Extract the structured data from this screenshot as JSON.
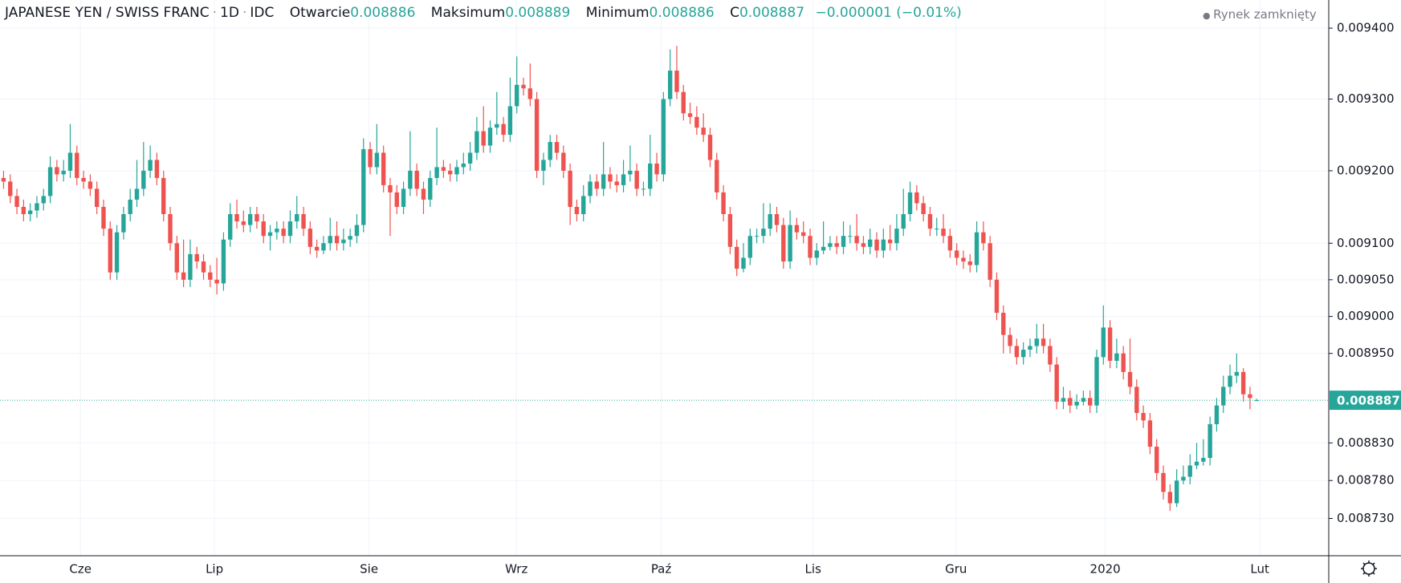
{
  "chart_data": {
    "type": "candlestick",
    "header": {
      "symbol": "JAPANESE YEN / SWISS FRANC",
      "interval": "1D",
      "source": "IDC",
      "open_label": "Otwarcie",
      "open": 0.008886,
      "high_label": "Maksimum",
      "high": 0.008889,
      "low_label": "Minimum",
      "low": 0.008886,
      "close_label": "C",
      "close": 0.008887,
      "change": "−0.000001 (−0.01%)",
      "status": "Rynek zamknięty"
    },
    "log": true,
    "grid": true,
    "up_color": "#26a69a",
    "down_color": "#ef5350",
    "ylim": [
      0.008681,
      0.00944
    ],
    "yticks": [
      {
        "value": 0.0094,
        "label": "0.009400"
      },
      {
        "value": 0.0093,
        "label": "0.009300"
      },
      {
        "value": 0.0092,
        "label": "0.009200"
      },
      {
        "value": 0.0091,
        "label": "0.009100"
      },
      {
        "value": 0.00905,
        "label": "0.009050"
      },
      {
        "value": 0.009,
        "label": "0.009000"
      },
      {
        "value": 0.00895,
        "label": "0.008950"
      },
      {
        "value": 0.00883,
        "label": "0.008830"
      },
      {
        "value": 0.00878,
        "label": "0.008780"
      },
      {
        "value": 0.00873,
        "label": "0.008730"
      }
    ],
    "xlabels": [
      "Cze",
      "Lip",
      "Sie",
      "Wrz",
      "Paź",
      "Lis",
      "Gru",
      "2020",
      "Lut"
    ],
    "candles": [
      [
        0.00919,
        0.0092,
        0.009175,
        0.009185
      ],
      [
        0.009185,
        0.009195,
        0.009155,
        0.009165
      ],
      [
        0.009165,
        0.009175,
        0.00914,
        0.00915
      ],
      [
        0.00915,
        0.00916,
        0.00913,
        0.00914
      ],
      [
        0.00914,
        0.009155,
        0.00913,
        0.009145
      ],
      [
        0.009145,
        0.009165,
        0.009135,
        0.009155
      ],
      [
        0.009155,
        0.009175,
        0.009145,
        0.009165
      ],
      [
        0.009165,
        0.00922,
        0.009155,
        0.009205
      ],
      [
        0.009205,
        0.009215,
        0.009185,
        0.009195
      ],
      [
        0.009195,
        0.009215,
        0.009185,
        0.0092
      ],
      [
        0.0092,
        0.009265,
        0.00919,
        0.009225
      ],
      [
        0.009225,
        0.009235,
        0.00918,
        0.00919
      ],
      [
        0.00919,
        0.0092,
        0.009175,
        0.009185
      ],
      [
        0.009185,
        0.009195,
        0.009165,
        0.009175
      ],
      [
        0.009175,
        0.009185,
        0.00914,
        0.00915
      ],
      [
        0.00915,
        0.00916,
        0.00911,
        0.00912
      ],
      [
        0.00912,
        0.00913,
        0.00905,
        0.00906
      ],
      [
        0.00906,
        0.009125,
        0.00905,
        0.009115
      ],
      [
        0.009115,
        0.00915,
        0.009105,
        0.00914
      ],
      [
        0.00914,
        0.009175,
        0.00913,
        0.00916
      ],
      [
        0.00916,
        0.009215,
        0.00915,
        0.009175
      ],
      [
        0.009175,
        0.00924,
        0.009165,
        0.0092
      ],
      [
        0.0092,
        0.009235,
        0.00919,
        0.009215
      ],
      [
        0.009215,
        0.009225,
        0.00918,
        0.00919
      ],
      [
        0.00919,
        0.0092,
        0.00913,
        0.00914
      ],
      [
        0.00914,
        0.00915,
        0.00909,
        0.0091
      ],
      [
        0.0091,
        0.00911,
        0.00905,
        0.00906
      ],
      [
        0.00906,
        0.009105,
        0.00904,
        0.00905
      ],
      [
        0.00905,
        0.009105,
        0.00904,
        0.009085
      ],
      [
        0.009085,
        0.009095,
        0.009065,
        0.009075
      ],
      [
        0.009075,
        0.009085,
        0.00905,
        0.00906
      ],
      [
        0.00906,
        0.00907,
        0.00904,
        0.00905
      ],
      [
        0.00905,
        0.00908,
        0.00903,
        0.009045
      ],
      [
        0.009045,
        0.009115,
        0.009035,
        0.009105
      ],
      [
        0.009105,
        0.009155,
        0.009095,
        0.00914
      ],
      [
        0.00914,
        0.00916,
        0.00912,
        0.00913
      ],
      [
        0.00913,
        0.009145,
        0.009115,
        0.009125
      ],
      [
        0.009125,
        0.00915,
        0.009115,
        0.00914
      ],
      [
        0.00914,
        0.00915,
        0.00912,
        0.00913
      ],
      [
        0.00913,
        0.00914,
        0.0091,
        0.00911
      ],
      [
        0.00911,
        0.009125,
        0.00909,
        0.009115
      ],
      [
        0.009115,
        0.00913,
        0.009105,
        0.00912
      ],
      [
        0.00912,
        0.00913,
        0.0091,
        0.00911
      ],
      [
        0.00911,
        0.009145,
        0.0091,
        0.00913
      ],
      [
        0.00913,
        0.009165,
        0.00912,
        0.00914
      ],
      [
        0.00914,
        0.00915,
        0.00911,
        0.00912
      ],
      [
        0.00912,
        0.00913,
        0.009085,
        0.009095
      ],
      [
        0.009095,
        0.009105,
        0.00908,
        0.00909
      ],
      [
        0.00909,
        0.00911,
        0.009085,
        0.0091
      ],
      [
        0.0091,
        0.009135,
        0.00909,
        0.00911
      ],
      [
        0.00911,
        0.00913,
        0.00909,
        0.0091
      ],
      [
        0.0091,
        0.00912,
        0.00909,
        0.009105
      ],
      [
        0.009105,
        0.00912,
        0.009095,
        0.00911
      ],
      [
        0.00911,
        0.00914,
        0.0091,
        0.009125
      ],
      [
        0.009125,
        0.009245,
        0.009115,
        0.00923
      ],
      [
        0.00923,
        0.00924,
        0.009195,
        0.009205
      ],
      [
        0.009205,
        0.009265,
        0.009195,
        0.009225
      ],
      [
        0.009225,
        0.009235,
        0.00917,
        0.00918
      ],
      [
        0.00918,
        0.00919,
        0.00911,
        0.00917
      ],
      [
        0.00917,
        0.00918,
        0.00914,
        0.00915
      ],
      [
        0.00915,
        0.009185,
        0.00914,
        0.009175
      ],
      [
        0.009175,
        0.009255,
        0.009165,
        0.0092
      ],
      [
        0.0092,
        0.00921,
        0.009165,
        0.009175
      ],
      [
        0.009175,
        0.009185,
        0.00914,
        0.00916
      ],
      [
        0.00916,
        0.0092,
        0.00915,
        0.00919
      ],
      [
        0.00919,
        0.00926,
        0.00918,
        0.009205
      ],
      [
        0.009205,
        0.009215,
        0.00919,
        0.0092
      ],
      [
        0.0092,
        0.00921,
        0.009185,
        0.009195
      ],
      [
        0.009195,
        0.009215,
        0.009185,
        0.009205
      ],
      [
        0.009205,
        0.009225,
        0.009195,
        0.00921
      ],
      [
        0.00921,
        0.00924,
        0.0092,
        0.009225
      ],
      [
        0.009225,
        0.009275,
        0.009215,
        0.009255
      ],
      [
        0.009255,
        0.00929,
        0.009225,
        0.009235
      ],
      [
        0.009235,
        0.00927,
        0.009225,
        0.00926
      ],
      [
        0.00926,
        0.00931,
        0.00925,
        0.009265
      ],
      [
        0.009265,
        0.009275,
        0.00924,
        0.00925
      ],
      [
        0.00925,
        0.00933,
        0.00924,
        0.00929
      ],
      [
        0.00929,
        0.00936,
        0.00928,
        0.00932
      ],
      [
        0.00932,
        0.00933,
        0.009305,
        0.009315
      ],
      [
        0.009315,
        0.00935,
        0.00929,
        0.0093
      ],
      [
        0.0093,
        0.00931,
        0.00919,
        0.0092
      ],
      [
        0.0092,
        0.009225,
        0.00918,
        0.009215
      ],
      [
        0.009215,
        0.00925,
        0.009205,
        0.00924
      ],
      [
        0.00924,
        0.00925,
        0.009215,
        0.009225
      ],
      [
        0.009225,
        0.009235,
        0.00919,
        0.0092
      ],
      [
        0.0092,
        0.00921,
        0.009125,
        0.00915
      ],
      [
        0.00915,
        0.00916,
        0.00913,
        0.00914
      ],
      [
        0.00914,
        0.00918,
        0.00913,
        0.009165
      ],
      [
        0.009165,
        0.009195,
        0.009155,
        0.009185
      ],
      [
        0.009185,
        0.009195,
        0.009165,
        0.009175
      ],
      [
        0.009175,
        0.00924,
        0.009165,
        0.009195
      ],
      [
        0.009195,
        0.009205,
        0.009175,
        0.009185
      ],
      [
        0.009185,
        0.009195,
        0.00917,
        0.00918
      ],
      [
        0.00918,
        0.009215,
        0.00917,
        0.009195
      ],
      [
        0.009195,
        0.009235,
        0.009185,
        0.0092
      ],
      [
        0.0092,
        0.00921,
        0.009165,
        0.009175
      ],
      [
        0.009175,
        0.009185,
        0.009165,
        0.009175
      ],
      [
        0.009175,
        0.00925,
        0.009165,
        0.00921
      ],
      [
        0.00921,
        0.009225,
        0.009185,
        0.009195
      ],
      [
        0.009195,
        0.00931,
        0.009185,
        0.0093
      ],
      [
        0.0093,
        0.00937,
        0.00929,
        0.00934
      ],
      [
        0.00934,
        0.009375,
        0.0093,
        0.00931
      ],
      [
        0.00931,
        0.00932,
        0.00927,
        0.00928
      ],
      [
        0.00928,
        0.009295,
        0.009265,
        0.009275
      ],
      [
        0.009275,
        0.00929,
        0.00925,
        0.00926
      ],
      [
        0.00926,
        0.00928,
        0.00924,
        0.00925
      ],
      [
        0.00925,
        0.00926,
        0.009205,
        0.009215
      ],
      [
        0.009215,
        0.009225,
        0.00916,
        0.00917
      ],
      [
        0.00917,
        0.00918,
        0.00913,
        0.00914
      ],
      [
        0.00914,
        0.00915,
        0.009085,
        0.009095
      ],
      [
        0.009095,
        0.009105,
        0.009055,
        0.009065
      ],
      [
        0.009065,
        0.0091,
        0.00906,
        0.00908
      ],
      [
        0.00908,
        0.00912,
        0.00907,
        0.00911
      ],
      [
        0.00911,
        0.00912,
        0.0091,
        0.00911
      ],
      [
        0.00911,
        0.009155,
        0.0091,
        0.00912
      ],
      [
        0.00912,
        0.009155,
        0.00911,
        0.00914
      ],
      [
        0.00914,
        0.00915,
        0.009115,
        0.009125
      ],
      [
        0.009125,
        0.009135,
        0.009065,
        0.009075
      ],
      [
        0.009075,
        0.009145,
        0.009065,
        0.009125
      ],
      [
        0.009125,
        0.009135,
        0.009105,
        0.009115
      ],
      [
        0.009115,
        0.00913,
        0.0091,
        0.00911
      ],
      [
        0.00911,
        0.00912,
        0.00907,
        0.00908
      ],
      [
        0.00908,
        0.0091,
        0.00907,
        0.00909
      ],
      [
        0.00909,
        0.00913,
        0.009085,
        0.009095
      ],
      [
        0.009095,
        0.00911,
        0.00909,
        0.0091
      ],
      [
        0.0091,
        0.00911,
        0.009085,
        0.009095
      ],
      [
        0.009095,
        0.00913,
        0.009085,
        0.00911
      ],
      [
        0.00911,
        0.009125,
        0.0091,
        0.00911
      ],
      [
        0.00911,
        0.00914,
        0.00909,
        0.0091
      ],
      [
        0.0091,
        0.00911,
        0.009085,
        0.009095
      ],
      [
        0.009095,
        0.00912,
        0.009085,
        0.009105
      ],
      [
        0.009105,
        0.009115,
        0.00908,
        0.00909
      ],
      [
        0.00909,
        0.00912,
        0.00908,
        0.009105
      ],
      [
        0.009105,
        0.009125,
        0.00909,
        0.0091
      ],
      [
        0.0091,
        0.00914,
        0.00909,
        0.00912
      ],
      [
        0.00912,
        0.009175,
        0.00911,
        0.00914
      ],
      [
        0.00914,
        0.009185,
        0.00913,
        0.00917
      ],
      [
        0.00917,
        0.00918,
        0.009145,
        0.009155
      ],
      [
        0.009155,
        0.009165,
        0.00913,
        0.00914
      ],
      [
        0.00914,
        0.00915,
        0.00911,
        0.00912
      ],
      [
        0.00912,
        0.009135,
        0.00911,
        0.00912
      ],
      [
        0.00912,
        0.00914,
        0.0091,
        0.00911
      ],
      [
        0.00911,
        0.00912,
        0.00908,
        0.00909
      ],
      [
        0.00909,
        0.0091,
        0.00907,
        0.00908
      ],
      [
        0.00908,
        0.00909,
        0.009065,
        0.009075
      ],
      [
        0.009075,
        0.009085,
        0.00906,
        0.00907
      ],
      [
        0.00907,
        0.00913,
        0.00906,
        0.009115
      ],
      [
        0.009115,
        0.00913,
        0.00909,
        0.0091
      ],
      [
        0.0091,
        0.00911,
        0.00904,
        0.00905
      ],
      [
        0.00905,
        0.00906,
        0.008995,
        0.009005
      ],
      [
        0.009005,
        0.009015,
        0.00895,
        0.008975
      ],
      [
        0.008975,
        0.008985,
        0.00895,
        0.00896
      ],
      [
        0.00896,
        0.00897,
        0.008935,
        0.008945
      ],
      [
        0.008945,
        0.008965,
        0.008935,
        0.008955
      ],
      [
        0.008955,
        0.00897,
        0.008945,
        0.00896
      ],
      [
        0.00896,
        0.00899,
        0.00895,
        0.00897
      ],
      [
        0.00897,
        0.00899,
        0.00895,
        0.00896
      ],
      [
        0.00896,
        0.00897,
        0.008925,
        0.008935
      ],
      [
        0.008935,
        0.008945,
        0.008875,
        0.008885
      ],
      [
        0.008885,
        0.008905,
        0.008875,
        0.00889
      ],
      [
        0.00889,
        0.0089,
        0.00887,
        0.00888
      ],
      [
        0.00888,
        0.008895,
        0.008875,
        0.008885
      ],
      [
        0.008885,
        0.0089,
        0.00888,
        0.00889
      ],
      [
        0.00889,
        0.0089,
        0.00887,
        0.00888
      ],
      [
        0.00888,
        0.008955,
        0.00887,
        0.008945
      ],
      [
        0.008945,
        0.009015,
        0.008935,
        0.008985
      ],
      [
        0.008985,
        0.008995,
        0.00893,
        0.00894
      ],
      [
        0.00894,
        0.00897,
        0.00893,
        0.00895
      ],
      [
        0.00895,
        0.00896,
        0.008915,
        0.008925
      ],
      [
        0.008925,
        0.00897,
        0.008895,
        0.008905
      ],
      [
        0.008905,
        0.008915,
        0.00886,
        0.00887
      ],
      [
        0.00887,
        0.00888,
        0.00885,
        0.00886
      ],
      [
        0.00886,
        0.00887,
        0.008815,
        0.008825
      ],
      [
        0.008825,
        0.008835,
        0.00878,
        0.00879
      ],
      [
        0.00879,
        0.0088,
        0.008755,
        0.008765
      ],
      [
        0.008765,
        0.008775,
        0.00874,
        0.00875
      ],
      [
        0.00875,
        0.008795,
        0.008745,
        0.00878
      ],
      [
        0.00878,
        0.0088,
        0.008775,
        0.008785
      ],
      [
        0.008785,
        0.008815,
        0.008775,
        0.0088
      ],
      [
        0.0088,
        0.00883,
        0.008795,
        0.008805
      ],
      [
        0.008805,
        0.008835,
        0.0088,
        0.00881
      ],
      [
        0.00881,
        0.008865,
        0.0088,
        0.008855
      ],
      [
        0.008855,
        0.00889,
        0.008845,
        0.00888
      ],
      [
        0.00888,
        0.00892,
        0.00887,
        0.008905
      ],
      [
        0.008905,
        0.008935,
        0.008895,
        0.00892
      ],
      [
        0.00892,
        0.00895,
        0.00891,
        0.008925
      ],
      [
        0.008925,
        0.00893,
        0.008885,
        0.008895
      ],
      [
        0.008895,
        0.008905,
        0.008875,
        0.00889
      ],
      [
        0.008886,
        0.008889,
        0.008886,
        0.008887
      ]
    ]
  }
}
